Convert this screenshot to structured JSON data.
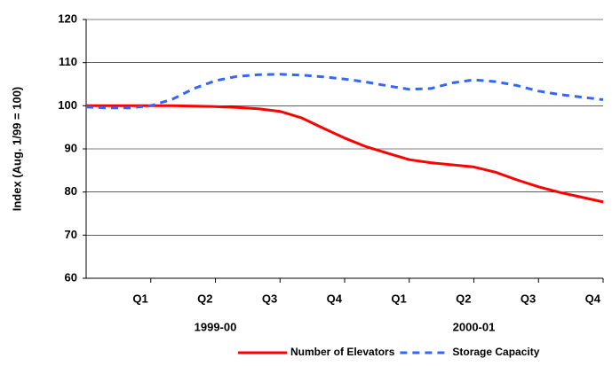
{
  "chart_data": {
    "type": "line",
    "y_label": "Index (Aug. 1/99 = 100)",
    "categories": [
      null,
      null,
      null,
      "Q1",
      null,
      null,
      "Q2",
      null,
      null,
      "Q3",
      null,
      null,
      "Q4",
      null,
      null,
      "Q1",
      null,
      null,
      "Q2",
      null,
      null,
      "Q3",
      null,
      null,
      "Q4"
    ],
    "x_groups": [
      "1999-00",
      "2000-01"
    ],
    "series": [
      {
        "name": "Number of Elevators",
        "color": "#ff0000",
        "dash": false,
        "values": [
          100,
          100,
          100,
          100,
          100,
          99.9,
          99.8,
          99.6,
          99.3,
          98.7,
          97.2,
          94.8,
          92.5,
          90.5,
          89,
          87.5,
          86.8,
          86.3,
          85.8,
          84.6,
          82.8,
          81.2,
          79.9,
          78.8,
          77.7
        ]
      },
      {
        "name": "Storage Capacity",
        "color": "#3366ff",
        "dash": true,
        "values": [
          99.7,
          99.5,
          99.5,
          100,
          101.5,
          104,
          105.8,
          106.8,
          107.2,
          107.3,
          107.1,
          106.7,
          106.2,
          105.5,
          104.6,
          103.8,
          104,
          105.3,
          106,
          105.6,
          104.7,
          103.4,
          102.6,
          102,
          101.4
        ]
      }
    ],
    "ylim": [
      60,
      120
    ],
    "yticks": [
      60,
      70,
      80,
      90,
      100,
      110,
      120
    ],
    "grid": true,
    "legend": "bottom-right"
  }
}
